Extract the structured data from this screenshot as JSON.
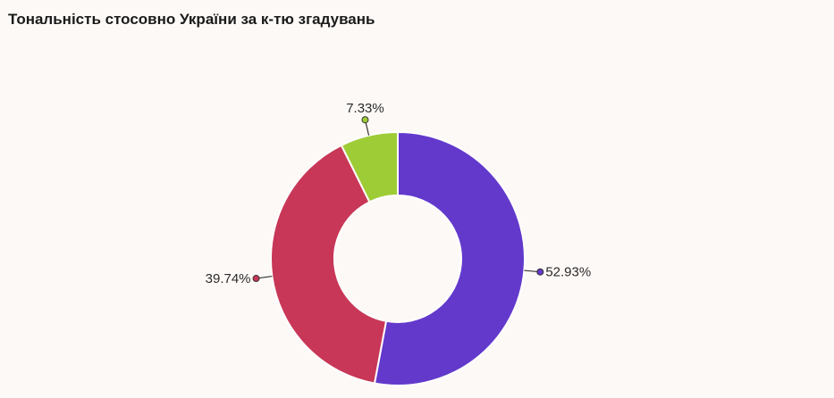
{
  "chart_data": {
    "type": "pie",
    "title": "Тональність стосовно України за к-тю згадувань",
    "donut": true,
    "values": [
      52.93,
      39.74,
      7.33
    ],
    "labels": [
      "52.93%",
      "39.74%",
      "7.33%"
    ],
    "colors": [
      "#6339cc",
      "#c83757",
      "#9ecc37"
    ],
    "legend": "none"
  }
}
